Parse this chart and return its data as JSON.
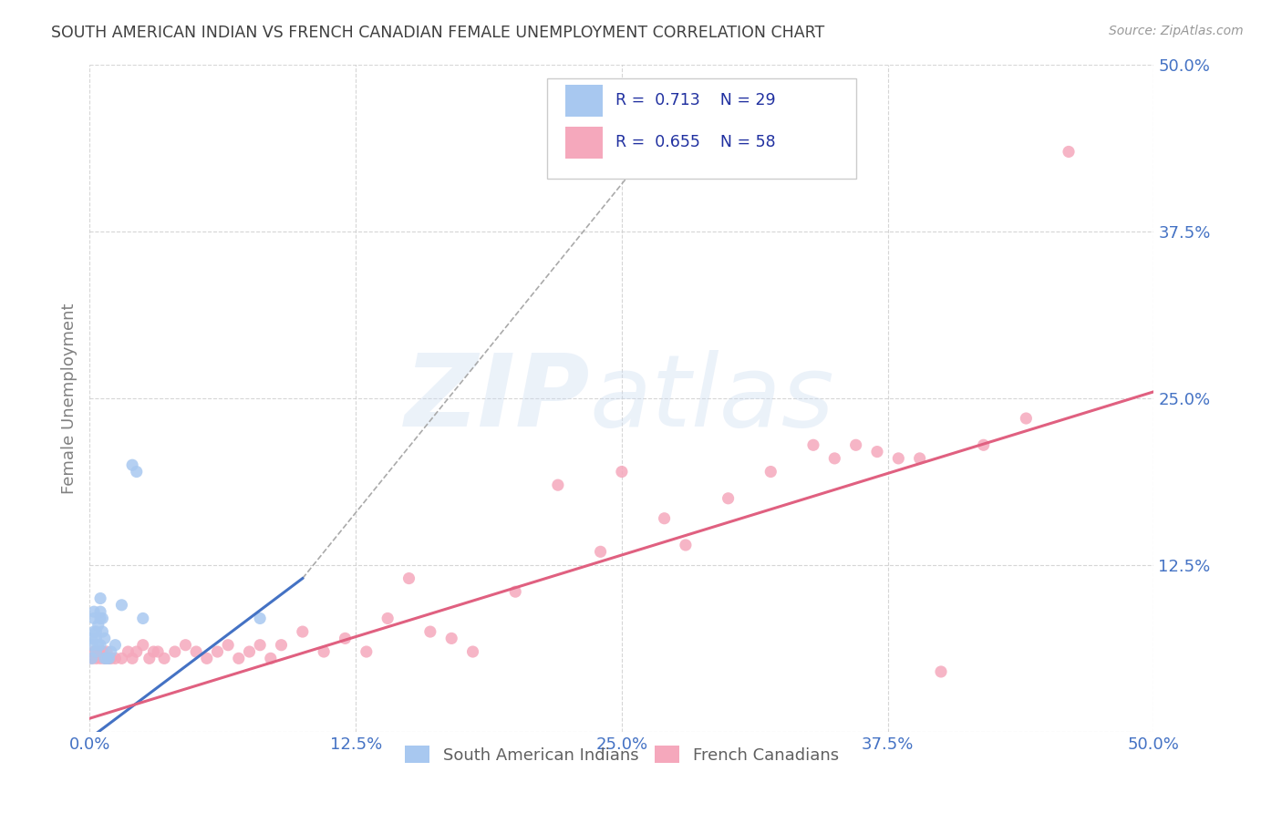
{
  "title": "SOUTH AMERICAN INDIAN VS FRENCH CANADIAN FEMALE UNEMPLOYMENT CORRELATION CHART",
  "source": "Source: ZipAtlas.com",
  "ylabel": "Female Unemployment",
  "xlim": [
    0.0,
    0.5
  ],
  "ylim": [
    0.0,
    0.5
  ],
  "blue_r": 0.713,
  "blue_n": 29,
  "pink_r": 0.655,
  "pink_n": 58,
  "blue_color": "#a8c8f0",
  "pink_color": "#f5a8bc",
  "blue_line_color": "#4472c4",
  "pink_line_color": "#e06080",
  "tick_color": "#4472c4",
  "ylabel_color": "#808080",
  "title_color": "#404040",
  "source_color": "#999999",
  "grid_color": "#cccccc",
  "blue_points": [
    [
      0.001,
      0.055
    ],
    [
      0.001,
      0.065
    ],
    [
      0.001,
      0.07
    ],
    [
      0.002,
      0.075
    ],
    [
      0.002,
      0.085
    ],
    [
      0.002,
      0.09
    ],
    [
      0.003,
      0.06
    ],
    [
      0.003,
      0.07
    ],
    [
      0.003,
      0.075
    ],
    [
      0.004,
      0.065
    ],
    [
      0.004,
      0.08
    ],
    [
      0.005,
      0.065
    ],
    [
      0.005,
      0.085
    ],
    [
      0.005,
      0.09
    ],
    [
      0.005,
      0.1
    ],
    [
      0.006,
      0.075
    ],
    [
      0.006,
      0.085
    ],
    [
      0.007,
      0.055
    ],
    [
      0.007,
      0.07
    ],
    [
      0.008,
      0.055
    ],
    [
      0.009,
      0.055
    ],
    [
      0.01,
      0.06
    ],
    [
      0.012,
      0.065
    ],
    [
      0.015,
      0.095
    ],
    [
      0.02,
      0.2
    ],
    [
      0.022,
      0.195
    ],
    [
      0.025,
      0.085
    ],
    [
      0.08,
      0.085
    ],
    [
      0.28,
      0.47
    ]
  ],
  "pink_points": [
    [
      0.001,
      0.055
    ],
    [
      0.002,
      0.06
    ],
    [
      0.003,
      0.055
    ],
    [
      0.004,
      0.06
    ],
    [
      0.005,
      0.055
    ],
    [
      0.006,
      0.06
    ],
    [
      0.007,
      0.055
    ],
    [
      0.008,
      0.06
    ],
    [
      0.009,
      0.055
    ],
    [
      0.01,
      0.055
    ],
    [
      0.012,
      0.055
    ],
    [
      0.015,
      0.055
    ],
    [
      0.018,
      0.06
    ],
    [
      0.02,
      0.055
    ],
    [
      0.022,
      0.06
    ],
    [
      0.025,
      0.065
    ],
    [
      0.028,
      0.055
    ],
    [
      0.03,
      0.06
    ],
    [
      0.032,
      0.06
    ],
    [
      0.035,
      0.055
    ],
    [
      0.04,
      0.06
    ],
    [
      0.045,
      0.065
    ],
    [
      0.05,
      0.06
    ],
    [
      0.055,
      0.055
    ],
    [
      0.06,
      0.06
    ],
    [
      0.065,
      0.065
    ],
    [
      0.07,
      0.055
    ],
    [
      0.075,
      0.06
    ],
    [
      0.08,
      0.065
    ],
    [
      0.085,
      0.055
    ],
    [
      0.09,
      0.065
    ],
    [
      0.1,
      0.075
    ],
    [
      0.11,
      0.06
    ],
    [
      0.12,
      0.07
    ],
    [
      0.13,
      0.06
    ],
    [
      0.14,
      0.085
    ],
    [
      0.15,
      0.115
    ],
    [
      0.16,
      0.075
    ],
    [
      0.17,
      0.07
    ],
    [
      0.18,
      0.06
    ],
    [
      0.2,
      0.105
    ],
    [
      0.22,
      0.185
    ],
    [
      0.24,
      0.135
    ],
    [
      0.25,
      0.195
    ],
    [
      0.27,
      0.16
    ],
    [
      0.28,
      0.14
    ],
    [
      0.3,
      0.175
    ],
    [
      0.32,
      0.195
    ],
    [
      0.34,
      0.215
    ],
    [
      0.35,
      0.205
    ],
    [
      0.36,
      0.215
    ],
    [
      0.37,
      0.21
    ],
    [
      0.38,
      0.205
    ],
    [
      0.39,
      0.205
    ],
    [
      0.4,
      0.045
    ],
    [
      0.42,
      0.215
    ],
    [
      0.44,
      0.235
    ],
    [
      0.46,
      0.435
    ]
  ],
  "blue_line_x": [
    0.0,
    0.1
  ],
  "blue_line_y": [
    -0.005,
    0.115
  ],
  "pink_line_x": [
    0.0,
    0.5
  ],
  "pink_line_y": [
    0.01,
    0.255
  ],
  "dash_line_x": [
    0.1,
    0.28
  ],
  "dash_line_y": [
    0.115,
    0.47
  ]
}
